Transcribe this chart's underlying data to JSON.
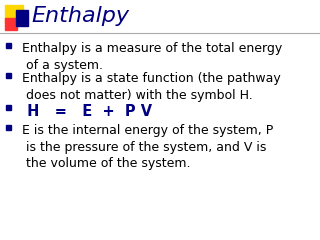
{
  "title": "Enthalpy",
  "title_color": "#000080",
  "title_fontsize": 16,
  "background_color": "#ffffff",
  "bullet_square_color": "#000080",
  "bullet_text_color": "#000000",
  "formula_color": "#000080",
  "line_color": "#aaaaaa",
  "accent_yellow": "#FFD700",
  "accent_red": "#FF3333",
  "accent_blue": "#000080",
  "bullets": [
    "Enthalpy is a measure of the total energy\n of a system.",
    "Enthalpy is a state function (the pathway\n does not matter) with the symbol H.",
    " H   =   E  +  P V",
    "E is the internal energy of the system, P\n is the pressure of the system, and V is\n the volume of the system."
  ],
  "formula_index": 2,
  "text_fontsize": 9,
  "formula_fontsize": 10.5,
  "figsize": [
    3.2,
    2.4
  ],
  "dpi": 100
}
